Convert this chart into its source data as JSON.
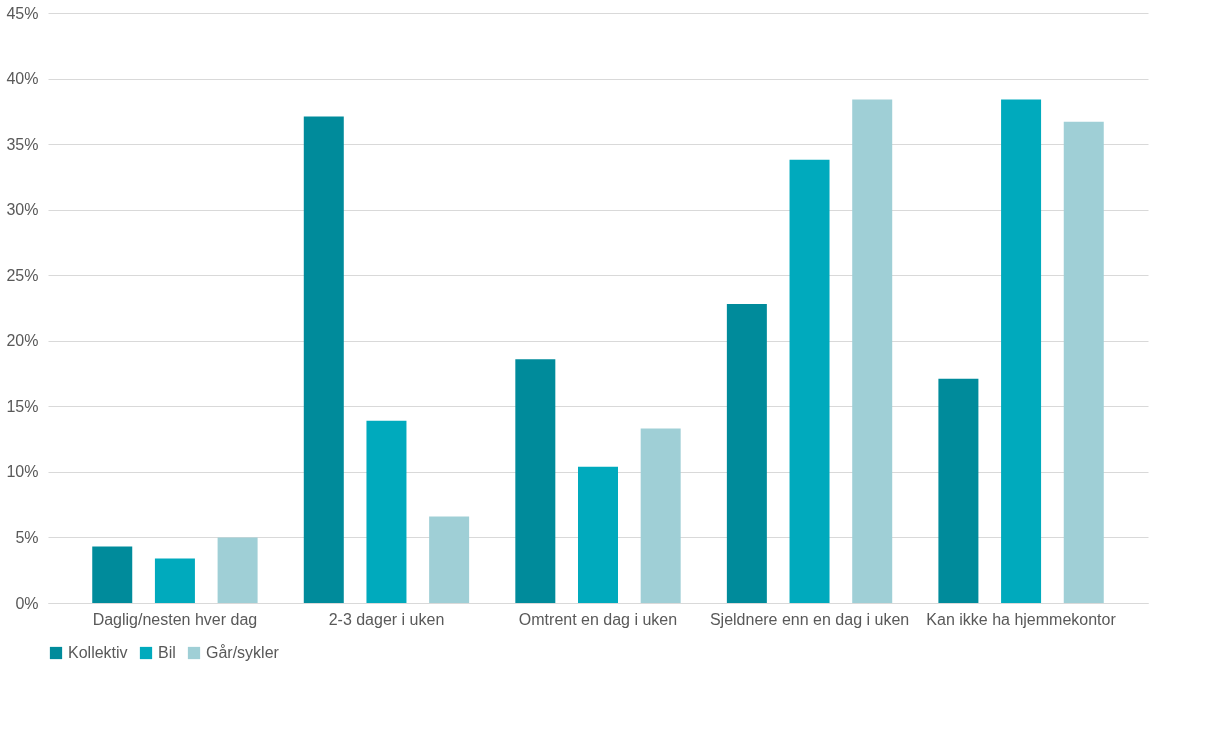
{
  "chart_data": {
    "type": "bar",
    "categories": [
      "Daglig/nesten hver dag",
      "2-3 dager i uken",
      "Omtrent en dag i uken",
      "Sjeldnere enn en dag i uken",
      "Kan ikke ha hjemmekontor"
    ],
    "series": [
      {
        "name": "Kollektiv",
        "color": "#008b9b",
        "values": [
          4.3,
          37.1,
          18.6,
          22.8,
          17.1
        ]
      },
      {
        "name": "Bil",
        "color": "#00aabd",
        "values": [
          3.4,
          13.9,
          10.4,
          33.8,
          38.4
        ]
      },
      {
        "name": "Går/sykler",
        "color": "#9fcfd6",
        "values": [
          5.0,
          6.6,
          13.3,
          38.4,
          36.7
        ]
      }
    ],
    "ylim": [
      0,
      45
    ],
    "yticks": [
      {
        "value": 0,
        "label": "0%"
      },
      {
        "value": 5,
        "label": "5%"
      },
      {
        "value": 10,
        "label": "10%"
      },
      {
        "value": 15,
        "label": "15%"
      },
      {
        "value": 20,
        "label": "20%"
      },
      {
        "value": 25,
        "label": "25%"
      },
      {
        "value": 30,
        "label": "30%"
      },
      {
        "value": 35,
        "label": "35%"
      },
      {
        "value": 40,
        "label": "40%"
      },
      {
        "value": 45,
        "label": "45%"
      }
    ],
    "grid": "y",
    "legend": "bottom"
  }
}
